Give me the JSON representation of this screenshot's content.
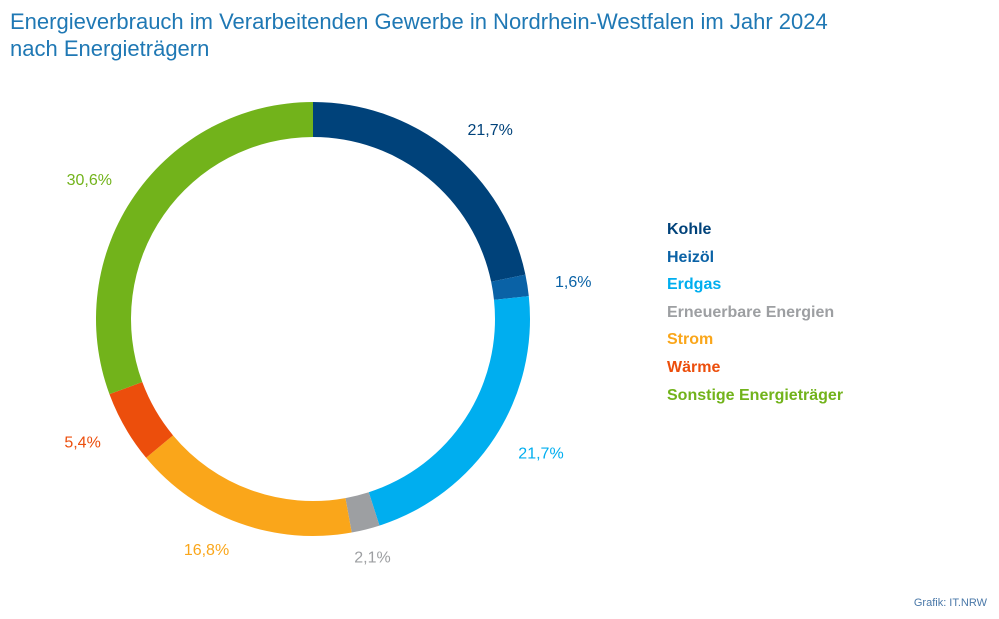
{
  "title": {
    "line1": "Energieverbrauch im Verarbeitenden Gewerbe in Nordrhein-Westfalen im Jahr 2024",
    "line2": "nach Energieträgern"
  },
  "source": "Grafik: IT.NRW",
  "chart_data": {
    "type": "pie",
    "variant": "donut",
    "title": "Energieverbrauch im Verarbeitenden Gewerbe in Nordrhein-Westfalen im Jahr 2024 nach Energieträgern",
    "unit": "%",
    "legend_position": "right",
    "series": [
      {
        "name": "Kohle",
        "value": 21.7,
        "label": "21,7%",
        "color": "#00427a"
      },
      {
        "name": "Heizöl",
        "value": 1.6,
        "label": "1,6%",
        "color": "#0a62a6"
      },
      {
        "name": "Erdgas",
        "value": 21.7,
        "label": "21,7%",
        "color": "#00aeef"
      },
      {
        "name": "Erneuerbare Energien",
        "value": 2.1,
        "label": "2,1%",
        "color": "#9d9fa2"
      },
      {
        "name": "Strom",
        "value": 16.8,
        "label": "16,8%",
        "color": "#faa61a"
      },
      {
        "name": "Wärme",
        "value": 5.4,
        "label": "5,4%",
        "color": "#ec4e0c"
      },
      {
        "name": "Sonstige Energieträger",
        "value": 30.6,
        "label": "30,6%",
        "color": "#72b31b"
      }
    ]
  }
}
